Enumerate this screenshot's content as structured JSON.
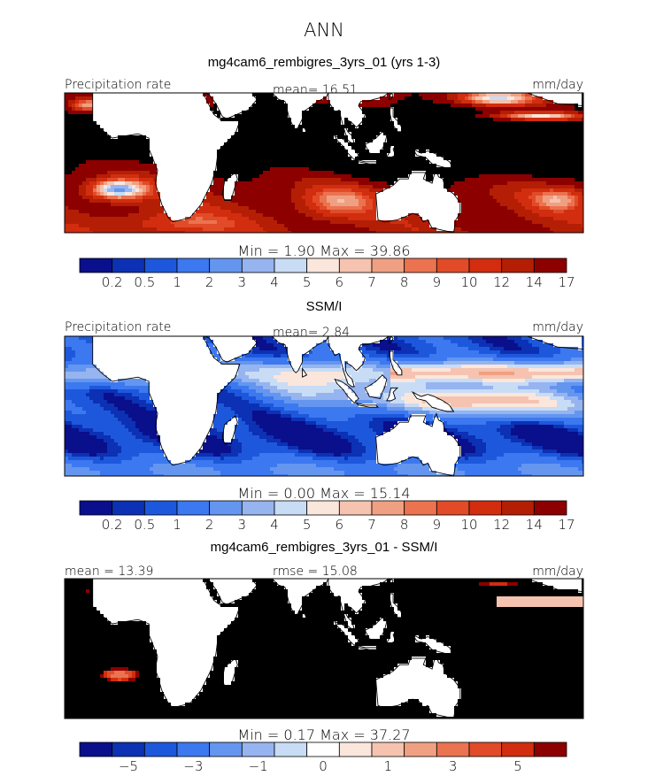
{
  "figure": {
    "season": "ANN",
    "colors": {
      "land": "#ffffff",
      "coast": "#000000"
    }
  },
  "chart_data": [
    {
      "type": "heatmap",
      "title": "mg4cam6_rembigres_3yrs_01 (yrs 1-3)",
      "left_label": "Precipitation rate",
      "center_label": "mean=  16.51",
      "right_label": "mm/day",
      "mean": 16.51,
      "min": 1.9,
      "max": 39.86,
      "range_text": "Min =   1.90 Max =   39.86",
      "levels": [
        0.2,
        0.5,
        1,
        2,
        3,
        4,
        5,
        6,
        7,
        8,
        9,
        10,
        12,
        14,
        17
      ],
      "colorbar_labels": [
        "0.2",
        "0.5",
        "1",
        "2",
        "3",
        "4",
        "5",
        "6",
        "7",
        "8",
        "9",
        "10",
        "12",
        "14",
        "17"
      ],
      "colors": [
        "#0a0f8c",
        "#0c31b4",
        "#1d58dc",
        "#3c78f0",
        "#6496f0",
        "#96b4f0",
        "#c8dcf5",
        "#fbe6dc",
        "#f5c3af",
        "#f0a082",
        "#eb7350",
        "#e14b28",
        "#d22d0f",
        "#b41e05",
        "#8c0000"
      ],
      "field": "model"
    },
    {
      "type": "heatmap",
      "title": "SSM/I",
      "left_label": "Precipitation rate",
      "center_label": "mean=  2.84",
      "right_label": "mm/day",
      "mean": 2.84,
      "min": 0.0,
      "max": 15.14,
      "range_text": "Min =   0.00 Max =   15.14",
      "levels": [
        0.2,
        0.5,
        1,
        2,
        3,
        4,
        5,
        6,
        7,
        8,
        9,
        10,
        12,
        14,
        17
      ],
      "colorbar_labels": [
        "0.2",
        "0.5",
        "1",
        "2",
        "3",
        "4",
        "5",
        "6",
        "7",
        "8",
        "9",
        "10",
        "12",
        "14",
        "17"
      ],
      "colors": [
        "#0a0f8c",
        "#0c31b4",
        "#1d58dc",
        "#3c78f0",
        "#6496f0",
        "#96b4f0",
        "#c8dcf5",
        "#fbe6dc",
        "#f5c3af",
        "#f0a082",
        "#eb7350",
        "#e14b28",
        "#d22d0f",
        "#b41e05",
        "#8c0000"
      ],
      "field": "obs"
    },
    {
      "type": "heatmap",
      "title": "mg4cam6_rembigres_3yrs_01 - SSM/I",
      "left_label": "mean =  13.39",
      "center_label": "rmse =  15.08",
      "right_label": "mm/day",
      "mean": 13.39,
      "rmse": 15.08,
      "min": 0.17,
      "max": 37.27,
      "range_text": "Min =   0.17 Max =   37.27",
      "levels": [
        -6,
        -5,
        -4,
        -3,
        -2,
        -1,
        -0.5,
        0,
        0.5,
        1,
        2,
        3,
        4,
        5,
        6
      ],
      "colorbar_labels": [
        "",
        "−5",
        "",
        "−3",
        "",
        "−1",
        "",
        "0",
        "",
        "1",
        "",
        "3",
        "",
        "5",
        ""
      ],
      "colors": [
        "#0a0f8c",
        "#0c31b4",
        "#1d58dc",
        "#3c78f0",
        "#6496f0",
        "#96b4f0",
        "#c8dcf5",
        "#ffffff",
        "#fbe6dc",
        "#f5c3af",
        "#f0a082",
        "#eb7350",
        "#e14b28",
        "#d22d0f",
        "#8c0000"
      ],
      "field": "diff"
    }
  ]
}
